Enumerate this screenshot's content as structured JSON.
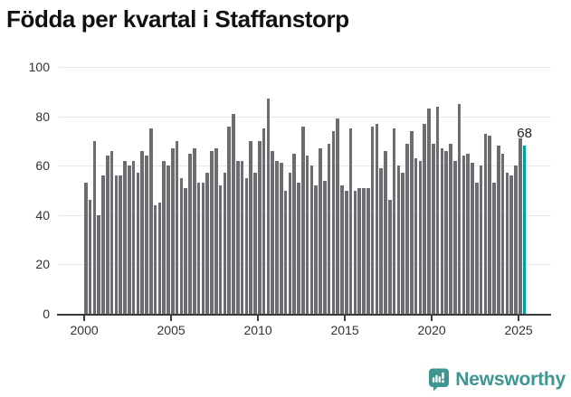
{
  "header": {
    "title": "Födda per kvartal i Staffanstorp"
  },
  "chart_data": {
    "type": "bar",
    "title": "Födda per kvartal i Staffanstorp",
    "x_start": "2000 Q1",
    "x_end": "2025 Q2",
    "frequency": "quarterly",
    "ylim": [
      0,
      100
    ],
    "yticks": [
      0,
      20,
      40,
      60,
      80,
      100
    ],
    "xticks": [
      2000,
      2005,
      2010,
      2015,
      2020,
      2025
    ],
    "grid": "horizontal",
    "legend": "none",
    "values": [
      53,
      46,
      70,
      40,
      56,
      64,
      66,
      56,
      56,
      62,
      60,
      62,
      57,
      66,
      64,
      75,
      44,
      45,
      62,
      60,
      67,
      70,
      55,
      51,
      65,
      67,
      53,
      53,
      57,
      66,
      67,
      52,
      57,
      76,
      81,
      62,
      62,
      55,
      70,
      57,
      70,
      75,
      87,
      66,
      62,
      61,
      50,
      57,
      65,
      53,
      76,
      64,
      60,
      52,
      67,
      54,
      69,
      74,
      79,
      52,
      50,
      75,
      50,
      51,
      51,
      51,
      76,
      77,
      59,
      66,
      46,
      75,
      60,
      57,
      69,
      74,
      63,
      62,
      77,
      83,
      69,
      84,
      67,
      66,
      69,
      62,
      85,
      64,
      65,
      61,
      53,
      60,
      73,
      72,
      53,
      68,
      65,
      57,
      56,
      60,
      71,
      68
    ],
    "highlight": {
      "index": 101,
      "quarter": "2025 Q2",
      "value": 68,
      "label": "68"
    },
    "colors": {
      "bar": "#6c6c71",
      "highlight": "#00a0a0",
      "grid": "#e7e7e7",
      "axis": "#3a3a3a",
      "tick_label": "#333333",
      "annotation": "#1d1d1d"
    }
  },
  "footer": {
    "brand": "Newsworthy",
    "brand_color": "#3e9690",
    "logo_icon": "newsworthy-speech-bubble-chart-icon"
  }
}
